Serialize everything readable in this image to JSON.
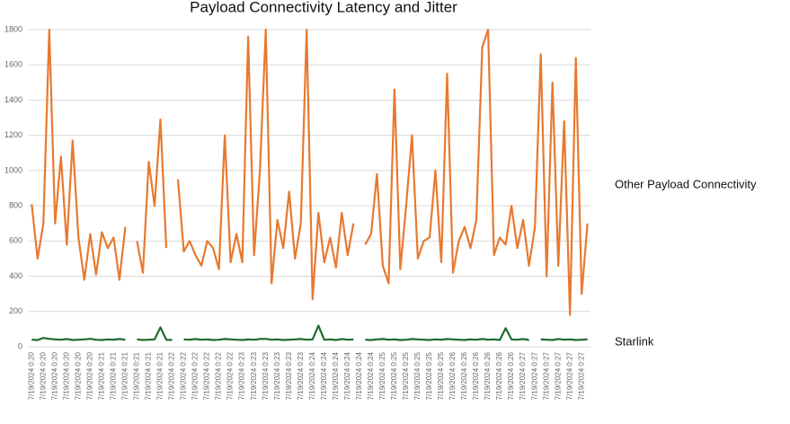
{
  "chart_data": {
    "type": "line",
    "title": "Payload Connectivity Latency and Jitter",
    "categories": [
      "7/19/2024 0:20",
      null,
      "7/19/2024 0:20",
      null,
      "7/19/2024 0:20",
      null,
      "7/19/2024 0:20",
      null,
      "7/19/2024 0:20",
      null,
      "7/19/2024 0:20",
      null,
      "7/19/2024 0:21",
      null,
      "7/19/2024 0:21",
      null,
      "7/19/2024 0:21",
      null,
      "7/19/2024 0:21",
      null,
      "7/19/2024 0:21",
      null,
      "7/19/2024 0:21",
      null,
      "7/19/2024 0:22",
      null,
      "7/19/2024 0:22",
      null,
      "7/19/2024 0:22",
      null,
      "7/19/2024 0:22",
      null,
      "7/19/2024 0:22",
      null,
      "7/19/2024 0:22",
      null,
      "7/19/2024 0:23",
      null,
      "7/19/2024 0:23",
      null,
      "7/19/2024 0:23",
      null,
      "7/19/2024 0:23",
      null,
      "7/19/2024 0:23",
      null,
      "7/19/2024 0:23",
      null,
      "7/19/2024 0:24",
      null,
      "7/19/2024 0:24",
      null,
      "7/19/2024 0:24",
      null,
      "7/19/2024 0:24",
      null,
      "7/19/2024 0:24",
      null,
      "7/19/2024 0:24",
      null,
      "7/19/2024 0:25",
      null,
      "7/19/2024 0:25",
      null,
      "7/19/2024 0:25",
      null,
      "7/19/2024 0:25",
      null,
      "7/19/2024 0:25",
      null,
      "7/19/2024 0:25",
      null,
      "7/19/2024 0:26",
      null,
      "7/19/2024 0:26",
      null,
      "7/19/2024 0:26",
      null,
      "7/19/2024 0:26",
      null,
      "7/19/2024 0:26",
      null,
      "7/19/2024 0:26",
      null,
      "7/19/2024 0:27",
      null,
      "7/19/2024 0:27",
      null,
      "7/19/2024 0:27",
      null,
      "7/19/2024 0:27",
      null,
      "7/19/2024 0:27",
      null,
      "7/19/2024 0:27",
      null
    ],
    "series": [
      {
        "name": "Other Payload Connectivity",
        "color": "#e8792f",
        "values": [
          810,
          500,
          700,
          1800,
          700,
          1080,
          580,
          1170,
          620,
          380,
          640,
          410,
          650,
          560,
          620,
          380,
          680,
          null,
          600,
          420,
          1050,
          800,
          1290,
          560,
          null,
          950,
          540,
          600,
          520,
          460,
          600,
          560,
          440,
          1200,
          480,
          640,
          480,
          1760,
          520,
          1000,
          1800,
          360,
          720,
          560,
          880,
          500,
          700,
          1800,
          270,
          760,
          480,
          620,
          450,
          760,
          520,
          700,
          null,
          580,
          640,
          980,
          460,
          360,
          1460,
          440,
          800,
          1200,
          500,
          600,
          620,
          1000,
          480,
          1550,
          420,
          600,
          680,
          560,
          720,
          1700,
          1800,
          520,
          620,
          580,
          800,
          560,
          720,
          460,
          680,
          1660,
          400,
          1500,
          460,
          1280,
          180,
          1640,
          300,
          700
        ]
      },
      {
        "name": "Starlink",
        "color": "#1e6b2e",
        "values": [
          40,
          38,
          50,
          45,
          42,
          40,
          44,
          38,
          40,
          42,
          45,
          40,
          38,
          42,
          40,
          44,
          40,
          null,
          42,
          38,
          40,
          42,
          110,
          40,
          38,
          null,
          42,
          40,
          44,
          40,
          42,
          38,
          40,
          44,
          42,
          40,
          38,
          42,
          40,
          44,
          45,
          40,
          42,
          38,
          40,
          42,
          44,
          40,
          42,
          120,
          40,
          42,
          38,
          44,
          40,
          42,
          null,
          40,
          38,
          42,
          44,
          40,
          42,
          38,
          40,
          44,
          42,
          40,
          38,
          42,
          40,
          44,
          42,
          40,
          38,
          42,
          40,
          44,
          40,
          42,
          38,
          105,
          42,
          40,
          44,
          38,
          null,
          42,
          40,
          38,
          44,
          40,
          42,
          38,
          40,
          42
        ]
      }
    ],
    "ylim": [
      0,
      1800
    ],
    "yticks": [
      0,
      200,
      400,
      600,
      800,
      1000,
      1200,
      1400,
      1600,
      1800
    ],
    "grid": true
  }
}
